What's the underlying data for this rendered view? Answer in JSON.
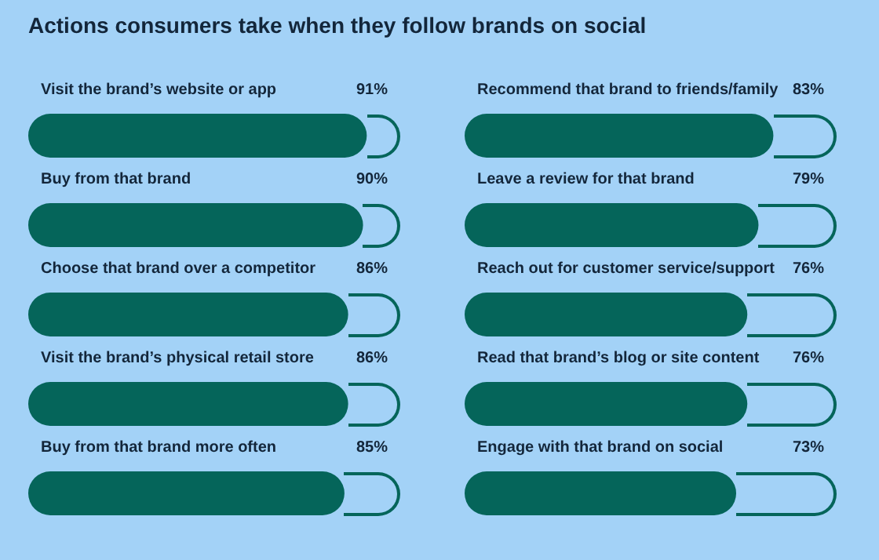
{
  "chart_data": [
    {
      "type": "bar",
      "orientation": "horizontal",
      "title": "Actions consumers take when they follow brands on social",
      "categories": [
        "Visit the brand’s website or app",
        "Buy from that brand",
        "Choose that brand over a competitor",
        "Visit the brand’s physical retail store",
        "Buy from that brand more often"
      ],
      "values": [
        91,
        90,
        86,
        86,
        85
      ],
      "value_labels": [
        "91%",
        "90%",
        "86%",
        "86%",
        "85%"
      ],
      "color": "#05655a",
      "tick_labels": "y"
    },
    {
      "type": "bar",
      "orientation": "horizontal",
      "categories": [
        "Recommend that brand to friends/family",
        "Leave a review for that brand",
        "Reach out for customer service/support",
        "Read that brand’s blog or site content",
        "Engage with that brand on social"
      ],
      "values": [
        83,
        79,
        76,
        76,
        73
      ],
      "value_labels": [
        "83%",
        "79%",
        "76%",
        "76%",
        "73%"
      ],
      "color": "#05655a",
      "tick_labels": "y"
    }
  ]
}
